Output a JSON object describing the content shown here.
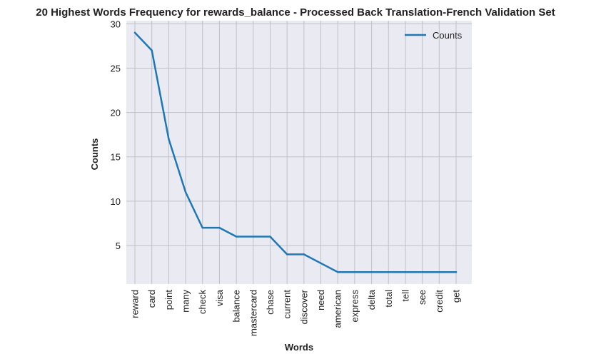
{
  "chart_data": {
    "type": "line",
    "title": "20 Highest Words Frequency for rewards_balance - Processed Back Translation-French Validation Set",
    "xlabel": "Words",
    "ylabel": "Counts",
    "categories": [
      "reward",
      "card",
      "point",
      "many",
      "check",
      "visa",
      "balance",
      "mastercard",
      "chase",
      "current",
      "discover",
      "need",
      "american",
      "express",
      "delta",
      "total",
      "tell",
      "see",
      "credit",
      "get"
    ],
    "series": [
      {
        "name": "Counts",
        "values": [
          29,
          27,
          17,
          11,
          7,
          7,
          6,
          6,
          6,
          4,
          4,
          3,
          2,
          2,
          2,
          2,
          2,
          2,
          2,
          2
        ]
      }
    ],
    "yticks": [
      5,
      10,
      15,
      20,
      25,
      30
    ],
    "ylim": [
      0.65,
      30.35
    ],
    "grid": true,
    "legend": "top-right",
    "colors": {
      "background": "#eaeaf2",
      "grid": "#c0c0c8",
      "line": "#1f77b4"
    }
  }
}
